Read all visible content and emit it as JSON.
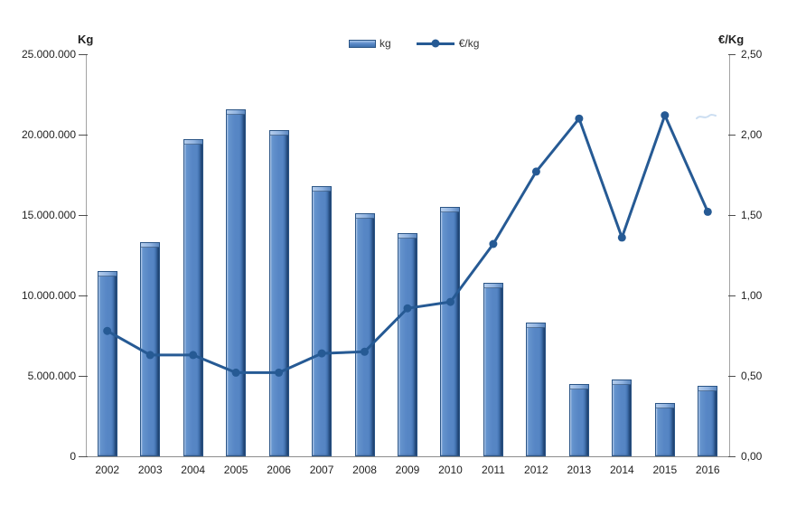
{
  "chart_data": {
    "type": "bar",
    "combo": "bar+line, dual y-axis",
    "categories": [
      "2002",
      "2003",
      "2004",
      "2005",
      "2006",
      "2007",
      "2008",
      "2009",
      "2010",
      "2011",
      "2012",
      "2013",
      "2014",
      "2015",
      "2016"
    ],
    "series": [
      {
        "name": "kg",
        "chart_type": "bar",
        "axis": "left",
        "color": "#5585c4",
        "values": [
          11500000,
          13300000,
          19700000,
          21600000,
          20300000,
          16800000,
          15100000,
          13900000,
          15500000,
          10800000,
          8300000,
          4500000,
          4800000,
          3300000,
          4400000
        ]
      },
      {
        "name": "€/kg",
        "chart_type": "line",
        "axis": "right",
        "color": "#265a94",
        "values": [
          0.78,
          0.63,
          0.63,
          0.52,
          0.52,
          0.64,
          0.65,
          0.92,
          0.96,
          1.32,
          1.77,
          2.1,
          1.36,
          2.12,
          1.52
        ]
      }
    ],
    "left_axis": {
      "title": "Kg",
      "min": 0,
      "max": 25000000,
      "tick_step": 5000000,
      "tick_labels": [
        "0",
        "5.000.000",
        "10.000.000",
        "15.000.000",
        "20.000.000",
        "25.000.000"
      ]
    },
    "right_axis": {
      "title": "€/Kg",
      "min": 0,
      "max": 2.5,
      "tick_step": 0.5,
      "tick_labels": [
        "0,00",
        "0,50",
        "1,00",
        "1,50",
        "2,00",
        "2,50"
      ]
    },
    "legend": {
      "position": "top-center",
      "items": [
        "kg",
        "€/kg"
      ]
    },
    "gridlines": false,
    "plot_background": "#ffffff"
  }
}
